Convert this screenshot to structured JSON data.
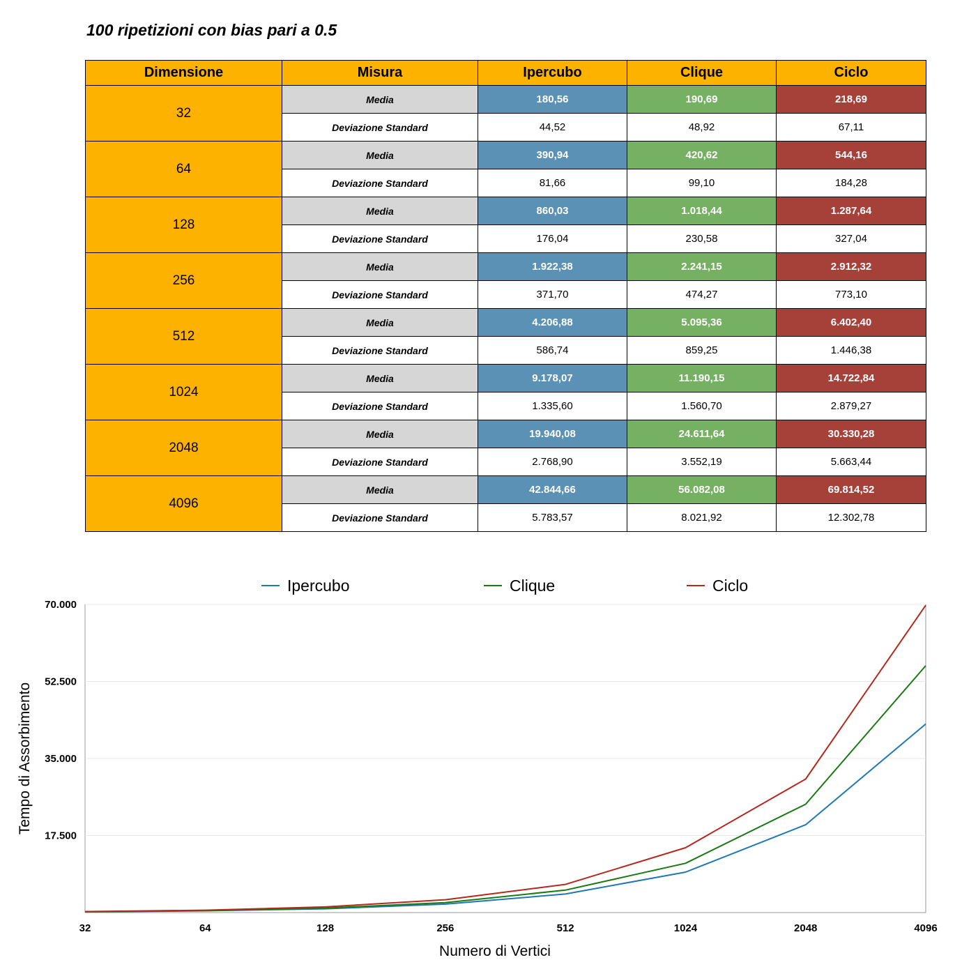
{
  "title": "100 ripetizioni con bias pari a 0.5",
  "table": {
    "headers": [
      "Dimensione",
      "Misura",
      "Ipercubo",
      "Clique",
      "Ciclo"
    ],
    "mean_label": "Media",
    "sd_label": "Deviazione Standard",
    "rows": [
      {
        "dim": "32",
        "mean": [
          "180,56",
          "190,69",
          "218,69"
        ],
        "sd": [
          "44,52",
          "48,92",
          "67,11"
        ]
      },
      {
        "dim": "64",
        "mean": [
          "390,94",
          "420,62",
          "544,16"
        ],
        "sd": [
          "81,66",
          "99,10",
          "184,28"
        ]
      },
      {
        "dim": "128",
        "mean": [
          "860,03",
          "1.018,44",
          "1.287,64"
        ],
        "sd": [
          "176,04",
          "230,58",
          "327,04"
        ]
      },
      {
        "dim": "256",
        "mean": [
          "1.922,38",
          "2.241,15",
          "2.912,32"
        ],
        "sd": [
          "371,70",
          "474,27",
          "773,10"
        ]
      },
      {
        "dim": "512",
        "mean": [
          "4.206,88",
          "5.095,36",
          "6.402,40"
        ],
        "sd": [
          "586,74",
          "859,25",
          "1.446,38"
        ]
      },
      {
        "dim": "1024",
        "mean": [
          "9.178,07",
          "11.190,15",
          "14.722,84"
        ],
        "sd": [
          "1.335,60",
          "1.560,70",
          "2.879,27"
        ]
      },
      {
        "dim": "2048",
        "mean": [
          "19.940,08",
          "24.611,64",
          "30.330,28"
        ],
        "sd": [
          "2.768,90",
          "3.552,19",
          "5.663,44"
        ]
      },
      {
        "dim": "4096",
        "mean": [
          "42.844,66",
          "56.082,08",
          "69.814,52"
        ],
        "sd": [
          "5.783,57",
          "8.021,92",
          "12.302,78"
        ]
      }
    ],
    "colors": {
      "header": "#fdb200",
      "ipercubo": "#5a91b4",
      "clique": "#76b062",
      "ciclo": "#a6413a",
      "measure": "#d6d6d6"
    }
  },
  "chart_data": {
    "type": "line",
    "categories": [
      "32",
      "64",
      "128",
      "256",
      "512",
      "1024",
      "2048",
      "4096"
    ],
    "series": [
      {
        "name": "Ipercubo",
        "color": "#1f77b4",
        "values": [
          180.56,
          390.94,
          860.03,
          1922.38,
          4206.88,
          9178.07,
          19940.08,
          42844.66
        ]
      },
      {
        "name": "Clique",
        "color": "#1a7a12",
        "values": [
          190.69,
          420.62,
          1018.44,
          2241.15,
          5095.36,
          11190.15,
          24611.64,
          56082.08
        ]
      },
      {
        "name": "Ciclo",
        "color": "#b3291c",
        "values": [
          218.69,
          544.16,
          1287.64,
          2912.32,
          6402.4,
          14722.84,
          30330.28,
          69814.52
        ]
      }
    ],
    "ylim": [
      0,
      70000
    ],
    "yticks": [
      17500,
      35000,
      52500,
      70000
    ],
    "ytick_labels": [
      "17.500",
      "35.000",
      "52.500",
      "70.000"
    ],
    "xlabel": "Numero di Vertici",
    "ylabel": "Tempo di Assorbimento",
    "legend_position": "top",
    "grid": true
  }
}
